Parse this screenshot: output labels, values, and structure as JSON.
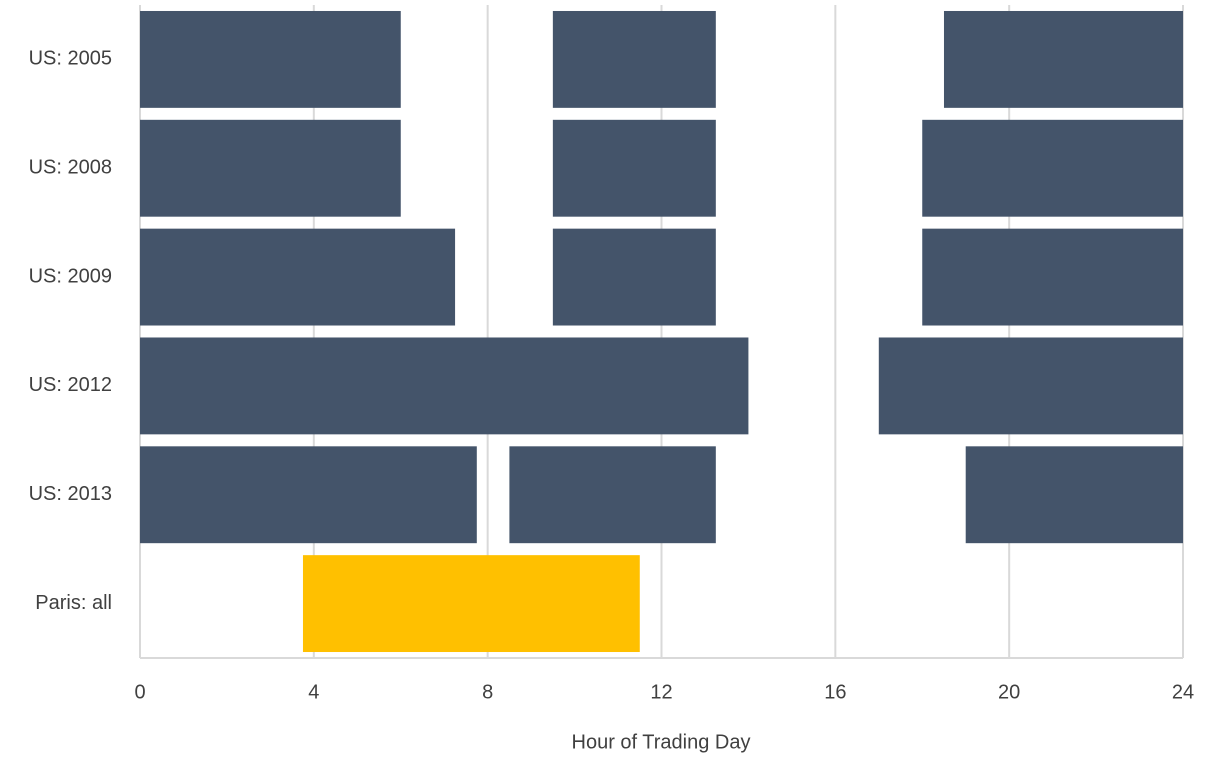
{
  "chart_data": {
    "type": "range-bar",
    "x_label": "Hour of Trading Day",
    "categories": [
      "US: 2005",
      "US: 2008",
      "US: 2009",
      "US: 2012",
      "US: 2013",
      "Paris: all"
    ],
    "ranges": [
      [
        [
          0,
          6
        ],
        [
          9.5,
          13.25
        ],
        [
          18.5,
          24
        ]
      ],
      [
        [
          0,
          6
        ],
        [
          9.5,
          13.25
        ],
        [
          18,
          24
        ]
      ],
      [
        [
          0,
          7.25
        ],
        [
          9.5,
          13.25
        ],
        [
          18,
          24
        ]
      ],
      [
        [
          0,
          14
        ],
        [
          17,
          24
        ]
      ],
      [
        [
          0,
          7.75
        ],
        [
          8.5,
          13.25
        ],
        [
          19,
          24
        ]
      ],
      [
        [
          3.75,
          11.5
        ]
      ]
    ],
    "colors": [
      "#44546a",
      "#44546a",
      "#44546a",
      "#44546a",
      "#44546a",
      "#ffc000"
    ],
    "xlim": [
      0,
      24
    ],
    "xticks": [
      0,
      4,
      8,
      12,
      16,
      20,
      24
    ],
    "grid": true
  }
}
